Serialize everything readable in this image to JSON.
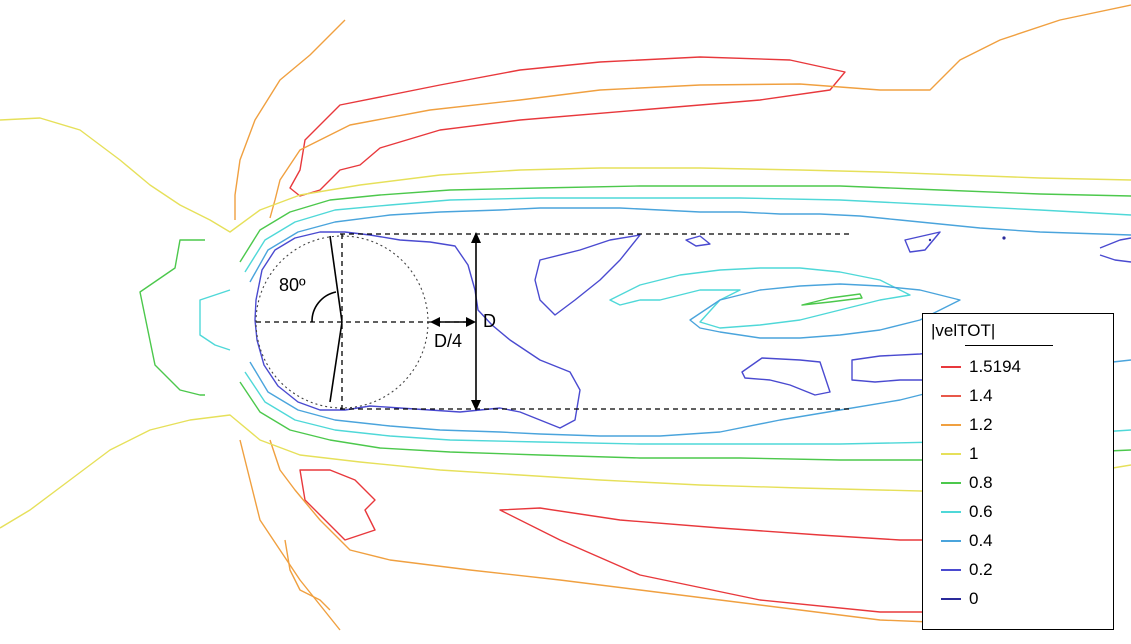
{
  "chart_data": {
    "type": "contour",
    "variable": "|velTOT|",
    "legend": {
      "title": "|velTOT|",
      "position": "right",
      "levels": [
        {
          "label": "1.5194",
          "value": 1.5194,
          "color": "#e8383c"
        },
        {
          "label": "1.4",
          "value": 1.4,
          "color": "#e8584a"
        },
        {
          "label": "1.2",
          "value": 1.2,
          "color": "#f0a040"
        },
        {
          "label": "1",
          "value": 1.0,
          "color": "#e6e05a"
        },
        {
          "label": "0.8",
          "value": 0.8,
          "color": "#4cc84c"
        },
        {
          "label": "0.6",
          "value": 0.6,
          "color": "#4fd8d8"
        },
        {
          "label": "0.4",
          "value": 0.4,
          "color": "#4aa4dc"
        },
        {
          "label": "0.2",
          "value": 0.2,
          "color": "#4a4ad0"
        },
        {
          "label": "0",
          "value": 0.0,
          "color": "#2a2a9a"
        }
      ]
    },
    "annotations": {
      "angle_label": "80º",
      "diameter_label": "D",
      "quarter_label": "D/4"
    },
    "grid": false
  }
}
